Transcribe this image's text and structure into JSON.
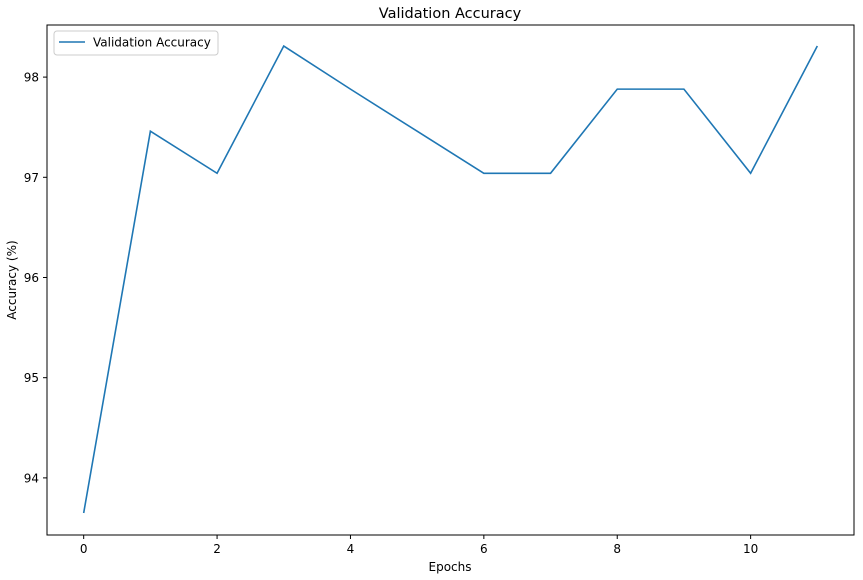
{
  "chart_data": {
    "type": "line",
    "title": "Validation Accuracy",
    "xlabel": "Epochs",
    "ylabel": "Accuracy (%)",
    "x": [
      0,
      1,
      2,
      3,
      4,
      5,
      6,
      7,
      8,
      9,
      10,
      11
    ],
    "series": [
      {
        "name": "Validation Accuracy",
        "color": "#1f77b4",
        "values": [
          93.65,
          97.46,
          97.04,
          98.31,
          97.88,
          97.46,
          97.04,
          97.04,
          97.88,
          97.88,
          97.04,
          98.31
        ]
      }
    ],
    "xlim": [
      -0.55,
      11.55
    ],
    "ylim": [
      93.43,
      98.52
    ],
    "xticks": [
      0,
      2,
      4,
      6,
      8,
      10
    ],
    "yticks": [
      94,
      95,
      96,
      97,
      98
    ],
    "grid": false,
    "legend_position": "top-left"
  }
}
